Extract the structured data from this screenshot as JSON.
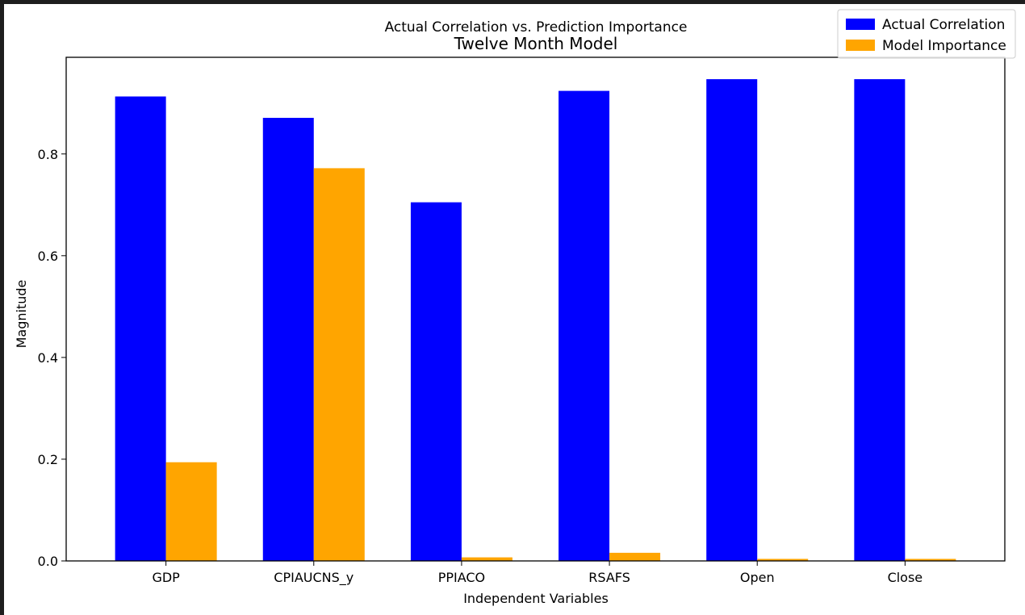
{
  "chart_data": {
    "type": "bar",
    "title": "Actual Correlation vs. Prediction Importance",
    "subtitle": "Twelve Month Model",
    "xlabel": "Independent Variables",
    "ylabel": "Magnitude",
    "categories": [
      "GDP",
      "CPIAUCNS_y",
      "PPIACO",
      "RSAFS",
      "Open",
      "Close"
    ],
    "series": [
      {
        "name": "Actual Correlation",
        "color": "#0000ff",
        "values": [
          0.913,
          0.871,
          0.705,
          0.924,
          0.947,
          0.947
        ]
      },
      {
        "name": "Model Importance",
        "color": "#ffa500",
        "values": [
          0.194,
          0.772,
          0.007,
          0.016,
          0.004,
          0.004
        ]
      }
    ],
    "ylim": [
      0,
      0.99
    ],
    "yticks": [
      0.0,
      0.2,
      0.4,
      0.6,
      0.8
    ],
    "ytick_labels": [
      "0.0",
      "0.2",
      "0.4",
      "0.6",
      "0.8"
    ],
    "grid": false,
    "legend_position": "top-right"
  }
}
